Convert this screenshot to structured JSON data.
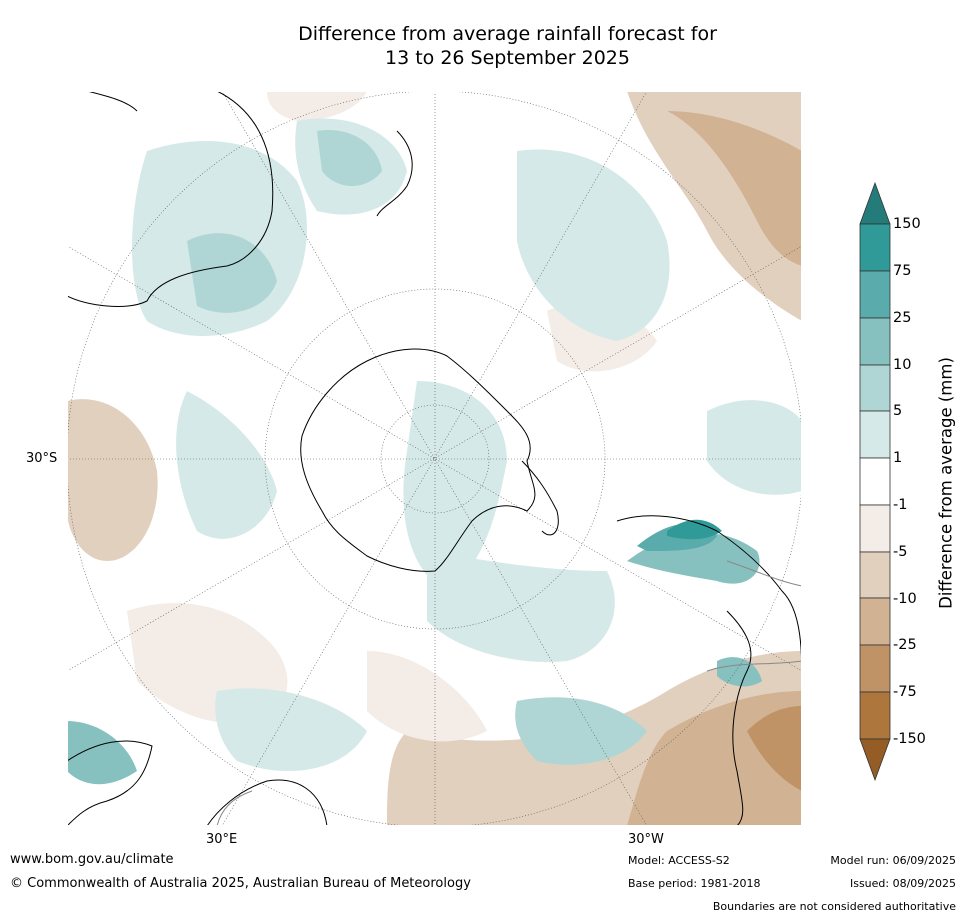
{
  "title": {
    "line1": "Difference from average rainfall forecast for",
    "line2": "13 to 26 September 2025"
  },
  "map": {
    "projection": "south-polar-stereographic",
    "lat_label": "30°S",
    "lon_labels": {
      "east": "30°E",
      "west": "30°W"
    }
  },
  "colorbar": {
    "title": "Difference from average (mm)",
    "ticks": [
      "150",
      "75",
      "25",
      "10",
      "5",
      "1",
      "-1",
      "-5",
      "-10",
      "-25",
      "-75",
      "-150"
    ],
    "colors": {
      "gt150": "#237c79",
      "75_150": "#2f9a97",
      "25_75": "#5aabab",
      "10_25": "#86c1c0",
      "5_10": "#afd6d5",
      "1_5": "#d5e9e8",
      "-1_1": "#ffffff",
      "-5_-1": "#f4ece6",
      "-10_-5": "#e2d0bf",
      "-25_-10": "#d1b394",
      "-75_-25": "#bf9366",
      "-150_-75": "#ad763d",
      "lt-150": "#955c26"
    }
  },
  "footer": {
    "website": "www.bom.gov.au/climate",
    "copyright": "© Commonwealth of Australia 2025, Australian Bureau of Meteorology",
    "model": "Model: ACCESS-S2",
    "base_period": "Base period: 1981-2018",
    "model_run": "Model run: 06/09/2025",
    "issued": "Issued: 08/09/2025",
    "disclaimer": "Boundaries are not considered authoritative"
  }
}
